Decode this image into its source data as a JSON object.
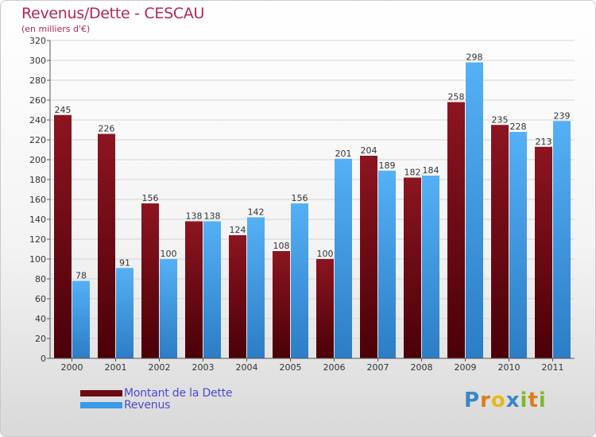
{
  "header": {
    "title": "Revenus/Dette - CESCAU",
    "subtitle": "(en milliers d'€)"
  },
  "chart_data": {
    "type": "bar",
    "categories": [
      "2000",
      "2001",
      "2002",
      "2003",
      "2004",
      "2005",
      "2006",
      "2007",
      "2008",
      "2009",
      "2010",
      "2011"
    ],
    "series": [
      {
        "name": "Montant de la Dette",
        "color": "#8b0f1a",
        "values": [
          245,
          226,
          156,
          138,
          124,
          108,
          100,
          204,
          182,
          258,
          235,
          213
        ]
      },
      {
        "name": "Revenus",
        "color": "#3b9ae8",
        "values": [
          78,
          91,
          100,
          138,
          142,
          156,
          201,
          189,
          184,
          298,
          228,
          239
        ]
      }
    ],
    "ylim": [
      0,
      320
    ],
    "yticks": [
      0,
      20,
      40,
      60,
      80,
      100,
      120,
      140,
      160,
      180,
      200,
      220,
      240,
      260,
      280,
      300,
      320
    ],
    "grid": true,
    "legend_position": "bottom-left"
  },
  "legend": [
    {
      "label": "Montant de la Dette",
      "color": "#6b0a12"
    },
    {
      "label": "Revenus",
      "color": "#3b9ae8"
    }
  ],
  "logo": {
    "text": "Proxiti",
    "letters": [
      {
        "ch": "P",
        "color": "#3a86c8"
      },
      {
        "ch": "r",
        "color": "#e07b1a"
      },
      {
        "ch": "o",
        "color": "#e8b81a"
      },
      {
        "ch": "x",
        "color": "#3a86c8"
      },
      {
        "ch": "i",
        "color": "#7aba2a"
      },
      {
        "ch": "t",
        "color": "#e07b1a"
      },
      {
        "ch": "i",
        "color": "#7aba2a"
      }
    ]
  }
}
